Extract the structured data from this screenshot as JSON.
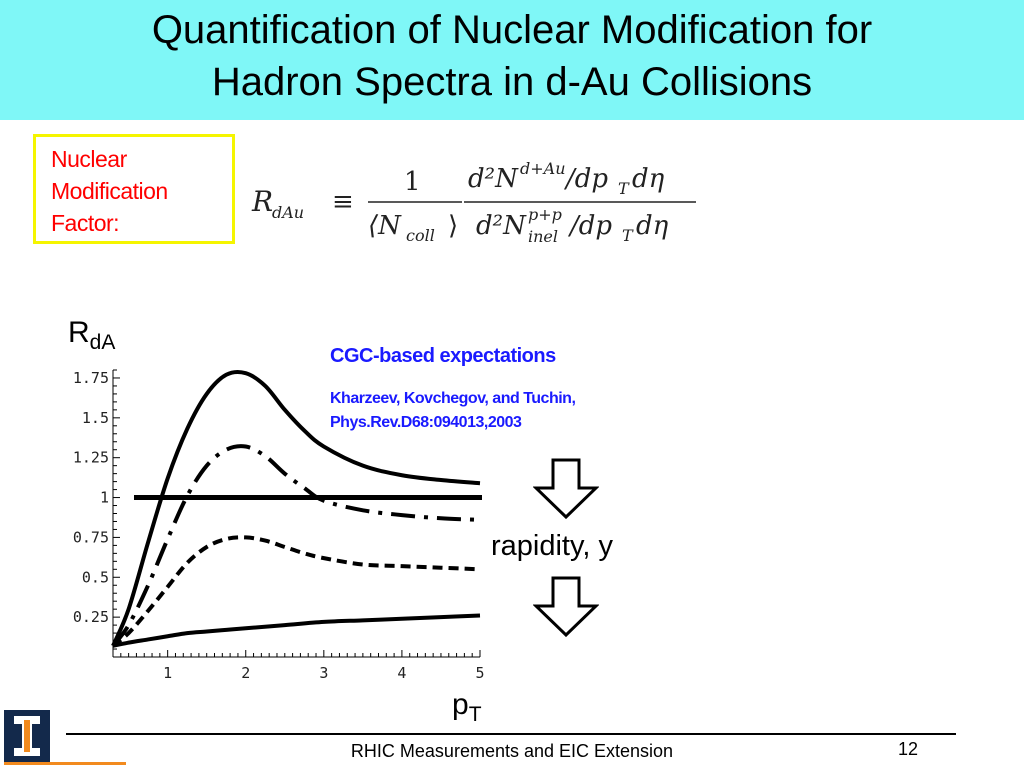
{
  "title": {
    "line1": "Quantification of Nuclear Modification for",
    "line2": "Hadron Spectra in d-Au Collisions"
  },
  "nmf_label": {
    "line1": "Nuclear",
    "line2": "Modification",
    "line3": "Factor:"
  },
  "formula": {
    "lhs": "R",
    "lhs_sub": "dAu",
    "equiv": "≡",
    "frac1_num": "1",
    "frac1_den": "⟨N",
    "frac1_den_sub": "coll",
    "frac1_den_close": "⟩",
    "num_d2N": "d²N",
    "num_sup": "d+Au",
    "num_tail": "/dp",
    "num_tail_sub": "T",
    "num_end": "dη",
    "den_d2N": "d²N",
    "den_sup": "p+p",
    "den_sub": "inel",
    "den_tail": "/dp",
    "den_tail_sub": "T",
    "den_end": "dη"
  },
  "chart_data": {
    "type": "line",
    "xlabel": "p",
    "xlabel_sub": "T",
    "ylabel": "R",
    "ylabel_sub": "dA",
    "xlim": [
      0.3,
      5.0
    ],
    "ylim": [
      0.0,
      1.8
    ],
    "x_ticks": [
      "1",
      "2",
      "3",
      "4",
      "5"
    ],
    "y_ticks": [
      "0.25",
      "0.5",
      "0.75",
      "1",
      "1.25",
      "1.5",
      "1.75"
    ],
    "grid": false,
    "reference_line": 1.0,
    "series": [
      {
        "style": "solid",
        "x": [
          0.3,
          0.5,
          0.75,
          1.0,
          1.25,
          1.5,
          1.75,
          2.0,
          2.25,
          2.5,
          2.75,
          3.0,
          3.5,
          4.0,
          4.5,
          5.0
        ],
        "y": [
          0.07,
          0.3,
          0.72,
          1.12,
          1.43,
          1.65,
          1.77,
          1.78,
          1.7,
          1.55,
          1.42,
          1.32,
          1.2,
          1.14,
          1.11,
          1.09
        ]
      },
      {
        "style": "dash-dot",
        "x": [
          0.3,
          0.5,
          0.75,
          1.0,
          1.25,
          1.5,
          1.75,
          2.0,
          2.25,
          2.5,
          2.75,
          3.0,
          3.5,
          4.0,
          4.5,
          5.0
        ],
        "y": [
          0.07,
          0.2,
          0.45,
          0.74,
          1.01,
          1.2,
          1.3,
          1.32,
          1.26,
          1.15,
          1.06,
          0.98,
          0.92,
          0.89,
          0.87,
          0.86
        ]
      },
      {
        "style": "dashed",
        "x": [
          0.3,
          0.5,
          0.75,
          1.0,
          1.25,
          1.5,
          1.75,
          2.0,
          2.25,
          2.5,
          2.75,
          3.0,
          3.5,
          4.0,
          4.5,
          5.0
        ],
        "y": [
          0.07,
          0.15,
          0.29,
          0.44,
          0.59,
          0.69,
          0.74,
          0.75,
          0.73,
          0.69,
          0.65,
          0.62,
          0.58,
          0.57,
          0.56,
          0.55
        ]
      },
      {
        "style": "solid",
        "x": [
          0.3,
          0.5,
          0.75,
          1.0,
          1.25,
          1.5,
          1.75,
          2.0,
          2.5,
          3.0,
          3.5,
          4.0,
          4.5,
          5.0
        ],
        "y": [
          0.07,
          0.09,
          0.11,
          0.13,
          0.15,
          0.16,
          0.17,
          0.18,
          0.2,
          0.22,
          0.23,
          0.24,
          0.25,
          0.26
        ]
      }
    ]
  },
  "annotation": {
    "cgc_title": "CGC-based expectations",
    "ref_line1": "Kharzeev, Kovchegov, and Tuchin,",
    "ref_line2": "Phys.Rev.D68:094013,2003",
    "rapidity": "rapidity, y",
    "arrow_icon": "down-arrow-icon"
  },
  "footer": {
    "text": "RHIC Measurements and EIC Extension",
    "page_number": "12"
  },
  "colors": {
    "title_band": "#7ff7f7",
    "nmf_box_border": "#f5f500",
    "nmf_text": "#ff0000",
    "annotation": "#1a1aff",
    "logo_blue": "#13294b",
    "logo_orange": "#f28a1e"
  }
}
